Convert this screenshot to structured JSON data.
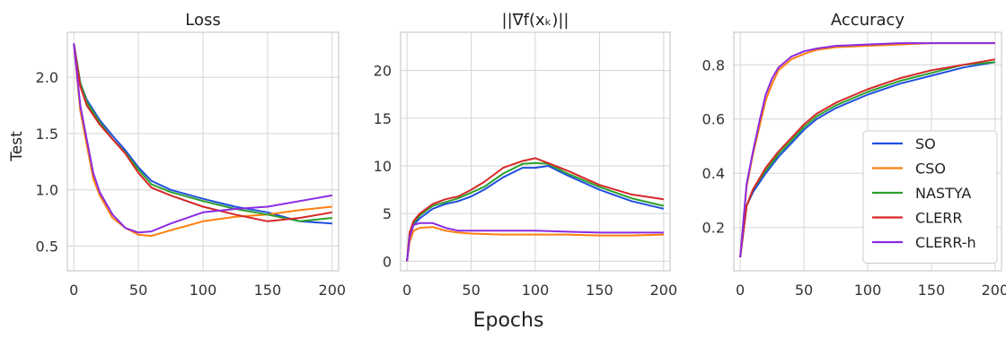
{
  "figure": {
    "ylabel": "Test",
    "xlabel": "Epochs"
  },
  "colors": {
    "SO": "#1f4fe0",
    "CSO": "#ff7f0e",
    "NASTYA": "#2ca02c",
    "CLERR": "#d62728",
    "CLERR-h": "#8b2be2"
  },
  "chart_data": [
    {
      "type": "line",
      "title": "Loss",
      "xlim": [
        -5,
        205
      ],
      "ylim": [
        0.28,
        2.4
      ],
      "xticks": [
        0,
        50,
        100,
        150,
        200
      ],
      "xtick_labels": [
        "0",
        "50",
        "100",
        "150",
        "200"
      ],
      "yticks": [
        0.5,
        1.0,
        1.5,
        2.0
      ],
      "ytick_labels": [
        "0.5",
        "1.0",
        "1.5",
        "2.0"
      ],
      "grid": true,
      "series": [
        {
          "name": "SO",
          "x": [
            0,
            5,
            10,
            20,
            30,
            40,
            50,
            60,
            75,
            100,
            125,
            150,
            175,
            200
          ],
          "y": [
            2.3,
            1.95,
            1.8,
            1.62,
            1.48,
            1.35,
            1.2,
            1.08,
            1.0,
            0.92,
            0.85,
            0.8,
            0.72,
            0.7
          ]
        },
        {
          "name": "CSO",
          "x": [
            0,
            5,
            10,
            15,
            20,
            30,
            40,
            50,
            60,
            75,
            100,
            125,
            150,
            175,
            200
          ],
          "y": [
            2.3,
            1.7,
            1.4,
            1.1,
            0.95,
            0.75,
            0.66,
            0.6,
            0.59,
            0.64,
            0.72,
            0.76,
            0.78,
            0.82,
            0.85
          ]
        },
        {
          "name": "NASTYA",
          "x": [
            0,
            5,
            10,
            20,
            30,
            40,
            50,
            60,
            75,
            100,
            125,
            150,
            175,
            200
          ],
          "y": [
            2.3,
            1.95,
            1.78,
            1.6,
            1.45,
            1.33,
            1.18,
            1.05,
            0.98,
            0.9,
            0.83,
            0.78,
            0.72,
            0.75
          ]
        },
        {
          "name": "CLERR",
          "x": [
            0,
            5,
            10,
            20,
            30,
            40,
            50,
            60,
            75,
            100,
            125,
            150,
            175,
            200
          ],
          "y": [
            2.3,
            1.92,
            1.75,
            1.58,
            1.45,
            1.32,
            1.15,
            1.02,
            0.95,
            0.85,
            0.78,
            0.72,
            0.75,
            0.8
          ]
        },
        {
          "name": "CLERR-h",
          "x": [
            0,
            5,
            10,
            15,
            20,
            30,
            40,
            50,
            60,
            75,
            100,
            125,
            150,
            175,
            200
          ],
          "y": [
            2.3,
            1.75,
            1.45,
            1.15,
            0.98,
            0.78,
            0.66,
            0.62,
            0.63,
            0.7,
            0.8,
            0.83,
            0.85,
            0.9,
            0.95
          ]
        }
      ]
    },
    {
      "type": "line",
      "title": "||∇f(xₖ)||",
      "xlim": [
        -5,
        205
      ],
      "ylim": [
        -1,
        24
      ],
      "xticks": [
        0,
        50,
        100,
        150,
        200
      ],
      "xtick_labels": [
        "0",
        "50",
        "100",
        "150",
        "200"
      ],
      "yticks": [
        0,
        5,
        10,
        15,
        20
      ],
      "ytick_labels": [
        "0",
        "5",
        "10",
        "15",
        "20"
      ],
      "grid": true,
      "series": [
        {
          "name": "SO",
          "x": [
            0,
            2,
            5,
            10,
            20,
            30,
            40,
            50,
            60,
            75,
            90,
            100,
            110,
            125,
            150,
            175,
            200
          ],
          "y": [
            0,
            2.5,
            3.8,
            4.5,
            5.5,
            6,
            6.3,
            6.8,
            7.5,
            8.8,
            9.8,
            9.8,
            10,
            9,
            7.5,
            6.3,
            5.5
          ]
        },
        {
          "name": "CSO",
          "x": [
            0,
            2,
            5,
            10,
            20,
            30,
            40,
            50,
            75,
            100,
            125,
            150,
            175,
            200
          ],
          "y": [
            0,
            2,
            3.2,
            3.5,
            3.6,
            3.2,
            3,
            2.9,
            2.8,
            2.8,
            2.8,
            2.7,
            2.7,
            2.8
          ]
        },
        {
          "name": "NASTYA",
          "x": [
            0,
            2,
            5,
            10,
            20,
            30,
            40,
            50,
            60,
            75,
            90,
            100,
            110,
            125,
            150,
            175,
            200
          ],
          "y": [
            0,
            2.8,
            4,
            4.8,
            5.8,
            6.2,
            6.6,
            7.2,
            7.8,
            9.2,
            10.2,
            10.3,
            10.2,
            9.2,
            7.8,
            6.6,
            5.8
          ]
        },
        {
          "name": "CLERR",
          "x": [
            0,
            2,
            5,
            10,
            20,
            30,
            40,
            50,
            60,
            75,
            90,
            100,
            110,
            125,
            150,
            175,
            200
          ],
          "y": [
            0,
            3,
            4.2,
            5,
            6,
            6.5,
            6.8,
            7.5,
            8.3,
            9.8,
            10.5,
            10.8,
            10.3,
            9.5,
            8,
            7,
            6.5
          ]
        },
        {
          "name": "CLERR-h",
          "x": [
            0,
            2,
            5,
            10,
            20,
            30,
            40,
            50,
            75,
            100,
            125,
            150,
            175,
            200
          ],
          "y": [
            0,
            2.5,
            3.8,
            4,
            4,
            3.5,
            3.2,
            3.2,
            3.2,
            3.2,
            3.1,
            3,
            3,
            3
          ]
        }
      ]
    },
    {
      "type": "line",
      "title": "Accuracy",
      "xlim": [
        -5,
        205
      ],
      "ylim": [
        0.04,
        0.92
      ],
      "xticks": [
        0,
        50,
        100,
        150,
        200
      ],
      "xtick_labels": [
        "0",
        "50",
        "100",
        "150",
        "200"
      ],
      "yticks": [
        0.2,
        0.4,
        0.6,
        0.8
      ],
      "ytick_labels": [
        "0.2",
        "0.4",
        "0.6",
        "0.8"
      ],
      "grid": true,
      "legend": {
        "position": "lower-right"
      },
      "series": [
        {
          "name": "SO",
          "x": [
            0,
            5,
            10,
            20,
            30,
            40,
            50,
            60,
            75,
            100,
            125,
            150,
            175,
            200
          ],
          "y": [
            0.09,
            0.28,
            0.33,
            0.4,
            0.46,
            0.51,
            0.56,
            0.6,
            0.64,
            0.69,
            0.73,
            0.76,
            0.79,
            0.81
          ]
        },
        {
          "name": "CSO",
          "x": [
            0,
            5,
            10,
            15,
            20,
            25,
            30,
            40,
            50,
            60,
            75,
            100,
            125,
            150,
            175,
            200
          ],
          "y": [
            0.09,
            0.35,
            0.47,
            0.57,
            0.67,
            0.73,
            0.78,
            0.82,
            0.84,
            0.855,
            0.865,
            0.87,
            0.875,
            0.88,
            0.88,
            0.88
          ]
        },
        {
          "name": "NASTYA",
          "x": [
            0,
            5,
            10,
            20,
            30,
            40,
            50,
            60,
            75,
            100,
            125,
            150,
            175,
            200
          ],
          "y": [
            0.09,
            0.28,
            0.34,
            0.41,
            0.47,
            0.52,
            0.57,
            0.61,
            0.65,
            0.7,
            0.74,
            0.77,
            0.8,
            0.81
          ]
        },
        {
          "name": "CLERR",
          "x": [
            0,
            5,
            10,
            20,
            30,
            40,
            50,
            60,
            75,
            100,
            125,
            150,
            175,
            200
          ],
          "y": [
            0.09,
            0.28,
            0.34,
            0.42,
            0.48,
            0.53,
            0.58,
            0.62,
            0.66,
            0.71,
            0.75,
            0.78,
            0.8,
            0.82
          ]
        },
        {
          "name": "CLERR-h",
          "x": [
            0,
            5,
            10,
            15,
            20,
            25,
            30,
            40,
            50,
            60,
            75,
            100,
            125,
            150,
            175,
            200
          ],
          "y": [
            0.09,
            0.36,
            0.48,
            0.59,
            0.69,
            0.75,
            0.79,
            0.83,
            0.85,
            0.86,
            0.87,
            0.875,
            0.88,
            0.88,
            0.88,
            0.88
          ]
        }
      ]
    }
  ]
}
